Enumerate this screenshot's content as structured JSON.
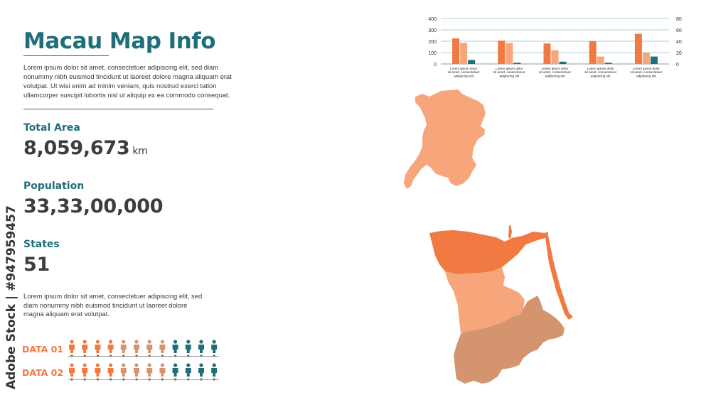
{
  "title": "Macau Map Info",
  "intro": "Lorem ipsum dolor sit amet, consectetuer adipiscing elit, sed diam nonummy nibh euismod tincidunt ut laoreet dolore magna aliquam erat volutpat. Ut wisi enim ad minim veniam, quis nostrud exerci tation ullamcorper suscipit lobortis nisl ut aliquip ex ea commodo consequat.",
  "stats": {
    "area_label": "Total Area",
    "area_value": "8,059,673",
    "area_unit": "km",
    "population_label": "Population",
    "population_value": "33,33,00,000",
    "states_label": "States",
    "states_value": "51"
  },
  "description": "Lorem ipsum dolor sit amet, consectetuer adipiscing elit, sed diam nonummy nibh euismod tincidunt ut laoreet dolore magna aliquam erat volutpat.",
  "data_rows": [
    {
      "label": "DATA 01",
      "colors": [
        "#f07a42",
        "#f07a42",
        "#f07a42",
        "#f07a42",
        "#d4956e",
        "#d4956e",
        "#d4956e",
        "#d4956e",
        "#1f6f7a",
        "#1f6f7a",
        "#1f6f7a",
        "#1f6f7a"
      ]
    },
    {
      "label": "DATA 02",
      "colors": [
        "#f07a42",
        "#f07a42",
        "#f07a42",
        "#f07a42",
        "#d4956e",
        "#d4956e",
        "#d4956e",
        "#d4956e",
        "#1f6f7a",
        "#1f6f7a",
        "#1f6f7a",
        "#1f6f7a"
      ]
    }
  ],
  "watermark": "Adobe Stock | #947959457",
  "colors": {
    "teal": "#1f6f7a",
    "orange": "#f07a42",
    "light_orange": "#f6a67a",
    "tan": "#d4956e"
  },
  "chart_data": {
    "type": "bar",
    "categories": [
      "Lorem ipsum dolor sit amet, consectetuer adipiscing elit",
      "Lorem ipsum dolor sit amet, consectetuer adipiscing elit",
      "Lorem ipsum dolor sit amet, consectetuer adipiscing elit",
      "Lorem ipsum dolor sit amet, consectetuer adipiscing elit",
      "Lorem ipsum dolor sit amet, consectetuer adipiscing elit"
    ],
    "series": [
      {
        "axis": "left",
        "color": "#f07a42",
        "values": [
          225,
          205,
          180,
          200,
          265
        ]
      },
      {
        "axis": "left",
        "color": "#f6a67a",
        "values": [
          185,
          185,
          120,
          65,
          100
        ]
      },
      {
        "axis": "right",
        "color": "#1f6f7a",
        "values": [
          7,
          2,
          4,
          2,
          13
        ]
      }
    ],
    "left_ticks": [
      "400",
      "300",
      "200",
      "100",
      "0"
    ],
    "right_ticks": [
      "80",
      "60",
      "40",
      "20",
      "0"
    ],
    "ylim_left": [
      0,
      400
    ],
    "ylim_right": [
      0,
      80
    ],
    "grid": true
  }
}
